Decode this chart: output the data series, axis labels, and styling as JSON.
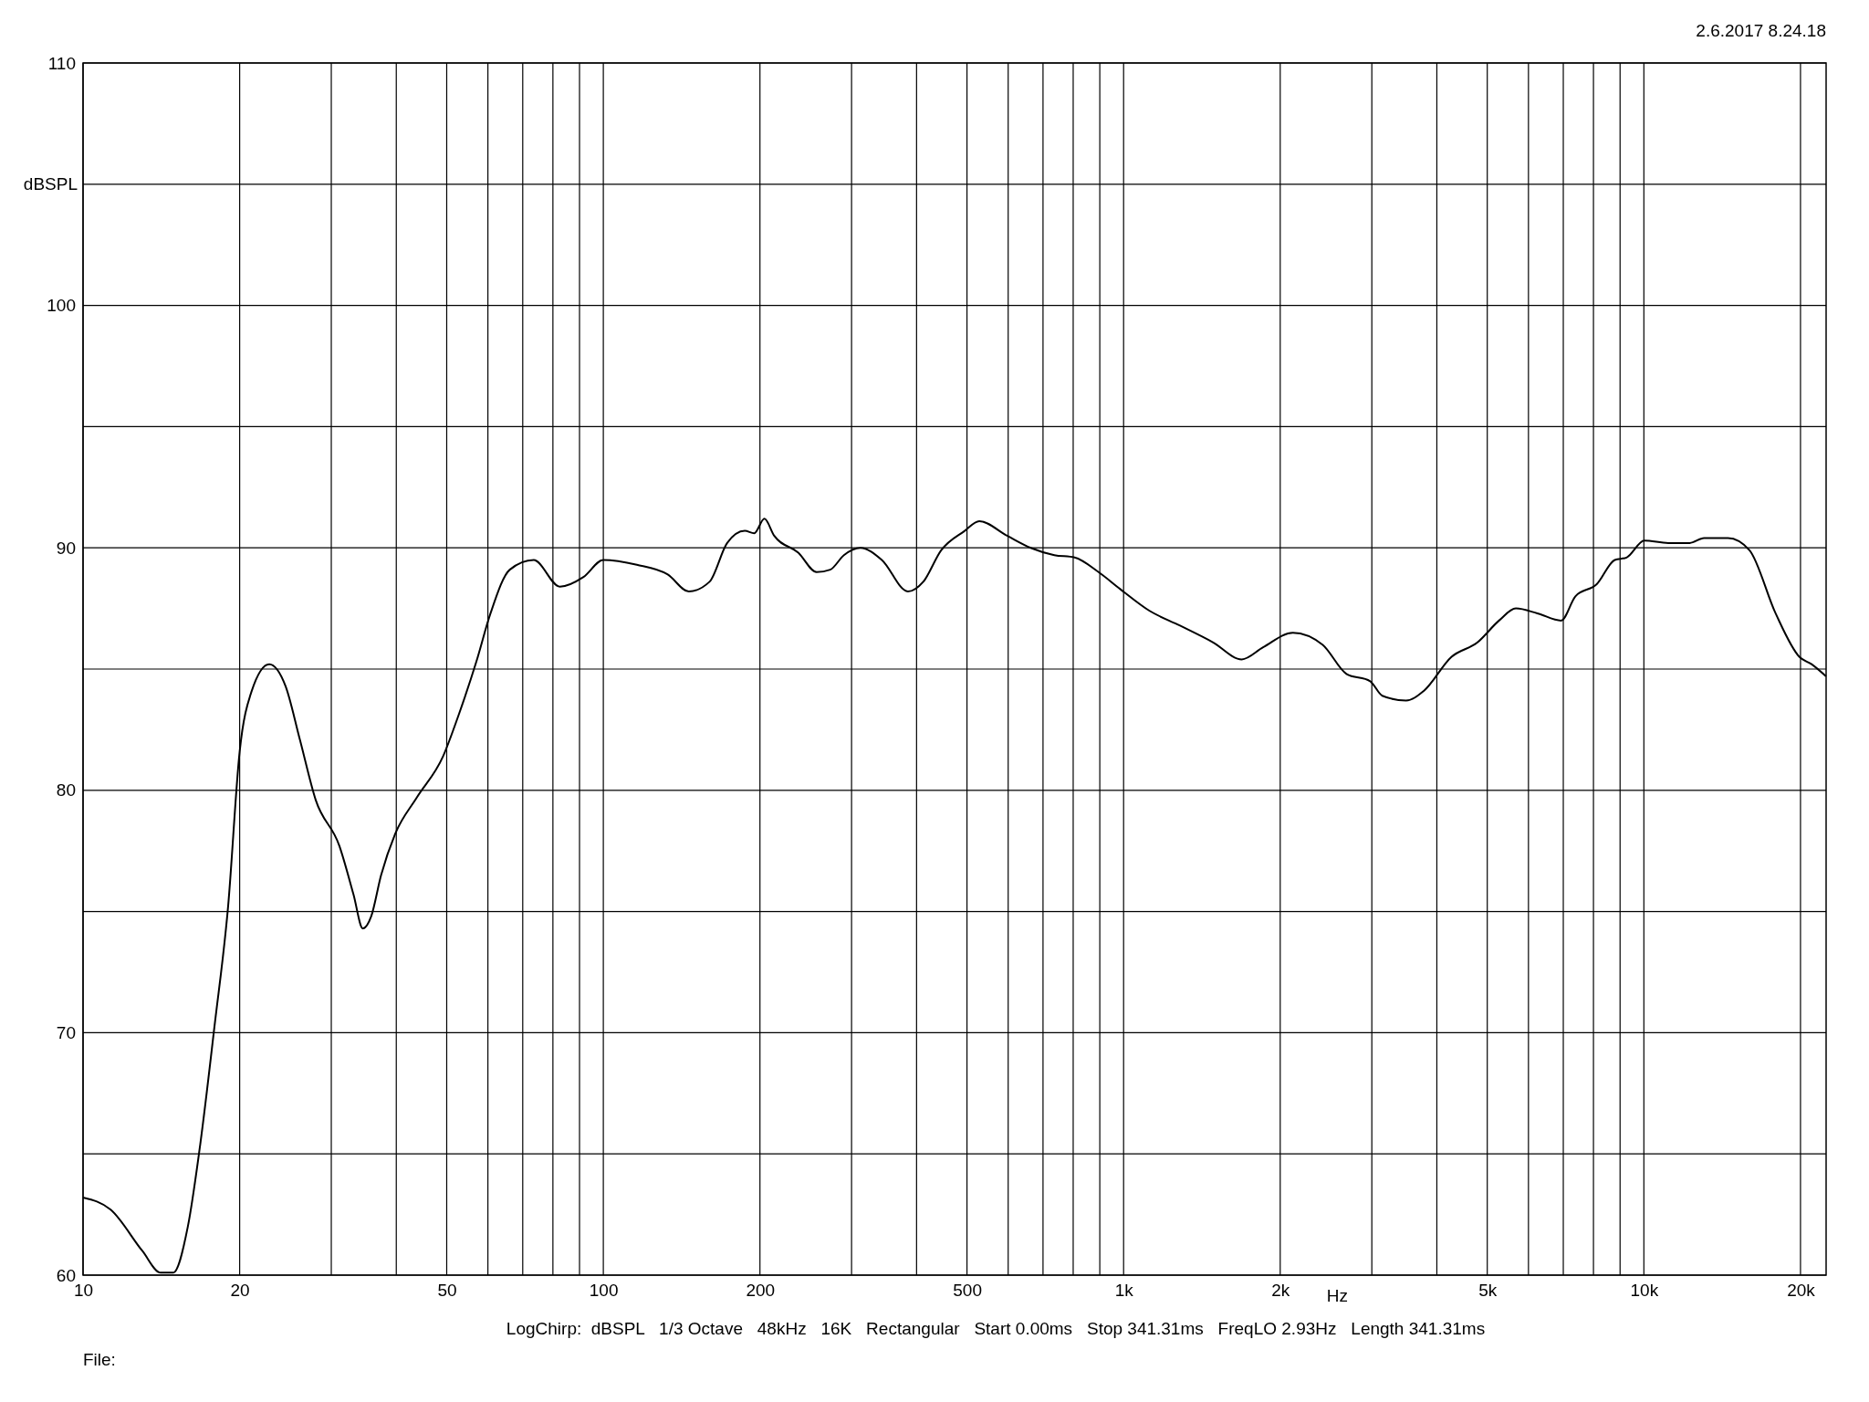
{
  "chart_data": {
    "type": "line",
    "log": "x",
    "grid": true,
    "xlabel": "Hz",
    "ylabel": "dBSPL",
    "annotations": [
      "2.6.2017 8.24.18",
      "LogChirp:  dBSPL   1/3 Octave   48kHz   16K   Rectangular   Start 0.00ms   Stop 341.31ms   FreqLO 2.93Hz   Length 341.31ms",
      "File:"
    ],
    "xlim": [
      10,
      22400
    ],
    "ylim": [
      60,
      110
    ],
    "xticks": [
      10,
      {
        "value": 20,
        "label": "20"
      },
      {
        "value": 30,
        "label": null
      },
      {
        "value": 40,
        "label": null
      },
      {
        "value": 50,
        "label": "50"
      },
      {
        "value": 60,
        "label": null
      },
      {
        "value": 70,
        "label": null
      },
      {
        "value": 80,
        "label": null
      },
      {
        "value": 90,
        "label": null
      },
      100,
      200,
      {
        "value": 300,
        "label": null
      },
      {
        "value": 400,
        "label": null
      },
      500,
      {
        "value": 600,
        "label": null
      },
      {
        "value": 700,
        "label": null
      },
      {
        "value": 800,
        "label": null
      },
      {
        "value": 900,
        "label": null
      },
      {
        "value": 1000,
        "label": "1k"
      },
      {
        "value": 2000,
        "label": "2k"
      },
      {
        "value": 3000,
        "label": null
      },
      {
        "value": 4000,
        "label": null
      },
      {
        "value": 5000,
        "label": "5k"
      },
      {
        "value": 6000,
        "label": null
      },
      {
        "value": 7000,
        "label": null
      },
      {
        "value": 8000,
        "label": null
      },
      {
        "value": 9000,
        "label": null
      },
      {
        "value": 10000,
        "label": "10k"
      },
      {
        "value": 20000,
        "label": "20k"
      }
    ],
    "yticks": [
      60,
      {
        "value": 65,
        "label": null
      },
      70,
      {
        "value": 75,
        "label": null
      },
      80,
      {
        "value": 85,
        "label": null
      },
      90,
      {
        "value": 95,
        "label": null
      },
      100,
      {
        "value": 105,
        "label": null
      },
      110
    ],
    "series": [
      {
        "color": "#000000",
        "line_style": "solid",
        "x": [
          10,
          11.3,
          13.0,
          14.1,
          14.9,
          15.9,
          16.8,
          17.9,
          19.0,
          20.0,
          21.1,
          22.8,
          24.5,
          26.1,
          28.0,
          31.1,
          33.1,
          34.5,
          35.8,
          37.4,
          39.8,
          43.8,
          49.2,
          52.7,
          57.0,
          60.7,
          66.1,
          73.5,
          82.5,
          91.6,
          100,
          116,
          133,
          146,
          160,
          173,
          187,
          195,
          204,
          213,
          237,
          257,
          273,
          290,
          312,
          343,
          385,
          412,
          446,
          495,
          528,
          597,
          663,
          736,
          805,
          895,
          985,
          1122,
          1281,
          1486,
          1687,
          1854,
          2115,
          2414,
          2681,
          2978,
          3142,
          3490,
          3776,
          4266,
          4788,
          5267,
          5675,
          6240,
          6934,
          7385,
          8117,
          8790,
          9264,
          10020,
          11140,
          12250,
          13050,
          14510,
          15960,
          17910,
          19910,
          21000,
          22390
        ],
        "values": [
          63.2,
          62.7,
          61.0,
          60.1,
          60.1,
          62.0,
          65.4,
          70.3,
          75.2,
          81.6,
          84.1,
          85.2,
          84.3,
          82.1,
          79.6,
          77.7,
          75.7,
          74.3,
          74.8,
          76.5,
          78.2,
          79.7,
          81.4,
          83.1,
          85.3,
          87.3,
          89.1,
          89.5,
          88.4,
          88.8,
          89.5,
          89.3,
          88.9,
          88.2,
          88.6,
          90.2,
          90.7,
          90.6,
          91.2,
          90.5,
          89.8,
          89.0,
          89.1,
          89.7,
          90.0,
          89.5,
          88.2,
          88.6,
          89.9,
          90.7,
          91.1,
          90.5,
          90.0,
          89.7,
          89.6,
          89.0,
          88.3,
          87.4,
          86.8,
          86.1,
          85.4,
          85.9,
          86.5,
          86.0,
          84.8,
          84.5,
          83.9,
          83.7,
          84.1,
          85.5,
          86.1,
          87.0,
          87.5,
          87.3,
          87.0,
          88.0,
          88.5,
          89.5,
          89.6,
          90.3,
          90.2,
          90.2,
          90.4,
          90.4,
          89.9,
          87.3,
          85.5,
          85.2,
          84.7
        ]
      }
    ]
  }
}
